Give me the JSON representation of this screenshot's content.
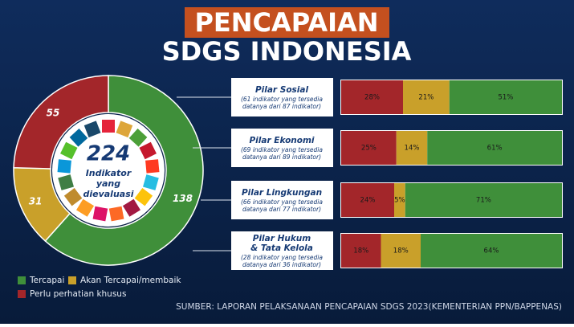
{
  "header": {
    "line1": "PENCAPAIAN",
    "line2": "SDGS INDONESIA"
  },
  "source": "SUMBER: LAPORAN PELAKSANAAN PENCAPAIAN SDGS 2023(KEMENTERIAN PPN/BAPPENAS)",
  "chart_data": [
    {
      "type": "pie",
      "donut": true,
      "categories": [
        "Tercapai",
        "Akan Tercapai/membaik",
        "Perlu perhatian khusus"
      ],
      "values": [
        138,
        31,
        55
      ],
      "colors": [
        "#3f8f3a",
        "#c9a02a",
        "#a3262a"
      ],
      "center_value": 224,
      "center_label": [
        "Indikator",
        "yang",
        "dievaluasi"
      ]
    },
    {
      "type": "bar",
      "orientation": "horizontal",
      "stacked": true,
      "categories": [
        [
          "Pilar Sosial"
        ],
        [
          "Pilar Ekonomi"
        ],
        [
          "Pilar Lingkungan"
        ],
        [
          "Pilar Hukum",
          "& Tata Kelola"
        ]
      ],
      "subtitles": [
        [
          "(61 indikator yang tersedia",
          "datanya dari 87 indikator)"
        ],
        [
          "(69 indikator yang tersedia",
          "datanya dari 89 indikator)"
        ],
        [
          "(66 indikator yang tersedia",
          "datanya dari 77 indikator)"
        ],
        [
          "(28 indikator yang tersedia",
          "datanya dari 36 indikator)"
        ]
      ],
      "series": [
        {
          "color": "#a3262a",
          "values": [
            28,
            25,
            24,
            18
          ],
          "value_labels": [
            "28%",
            "25%",
            "24%",
            "18%"
          ]
        },
        {
          "color": "#c9a02a",
          "values": [
            21,
            14,
            5,
            18
          ],
          "value_labels": [
            "21%",
            "14%",
            "5%",
            "18%"
          ]
        },
        {
          "color": "#3f8f3a",
          "values": [
            51,
            61,
            71,
            64
          ],
          "value_labels": [
            "51%",
            "61%",
            "71%",
            "64%"
          ]
        }
      ]
    }
  ]
}
